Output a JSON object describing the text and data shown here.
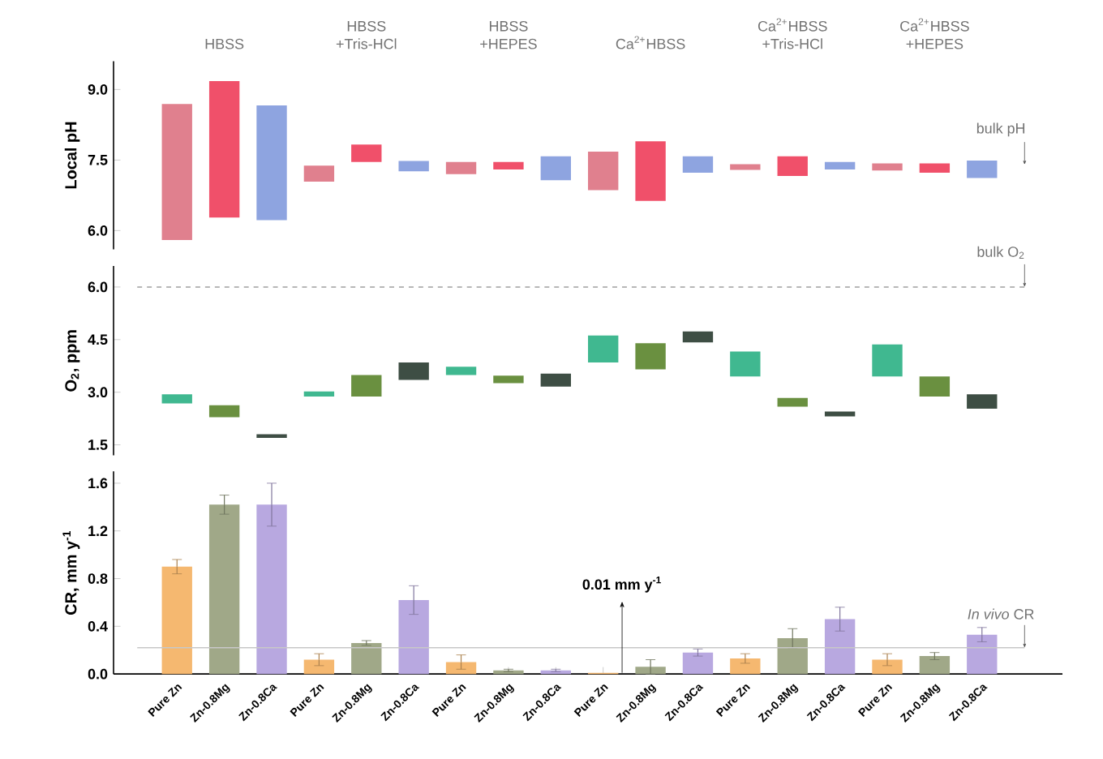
{
  "chart_data": [
    {
      "type": "bar",
      "ylabel": "Local pH",
      "tick_labels": "y",
      "categories": [
        null,
        null,
        null,
        null,
        null,
        null,
        null,
        null,
        null,
        null,
        null,
        null,
        null,
        null,
        null,
        null,
        null,
        null
      ],
      "base": [
        5.8,
        6.28,
        6.22,
        7.04,
        7.46,
        7.26,
        7.2,
        7.3,
        7.07,
        6.86,
        6.63,
        7.23,
        7.29,
        7.16,
        7.3,
        7.28,
        7.23,
        7.12
      ],
      "values": [
        2.89,
        2.9,
        2.44,
        0.34,
        0.37,
        0.22,
        0.26,
        0.16,
        0.51,
        0.82,
        1.27,
        0.35,
        0.12,
        0.42,
        0.16,
        0.15,
        0.2,
        0.37
      ],
      "colors": [
        "#e0808e",
        "#f0506a",
        "#8ea4e0",
        "#e0808e",
        "#f0506a",
        "#8ea4e0",
        "#e0808e",
        "#f0506a",
        "#8ea4e0",
        "#e0808e",
        "#f0506a",
        "#8ea4e0",
        "#e0808e",
        "#f0506a",
        "#8ea4e0",
        "#e0808e",
        "#f0506a",
        "#8ea4e0"
      ],
      "ylim": [
        5.6,
        9.6
      ],
      "yticks": [
        {
          "value": 6.0,
          "label": "6.0"
        },
        {
          "value": 7.5,
          "label": "7.5"
        },
        {
          "value": 9.0,
          "label": "9.0"
        }
      ],
      "annotations": [
        "HBSS",
        "HBSS +Tris-HCl",
        "HBSS +HEPES",
        "Ca$^{2+}$HBSS",
        "Ca$^{2+}$HBSS +Tris-HCl",
        "Ca$^{2+}$HBSS +HEPES",
        {
          "text": "bulk pH",
          "y": 7.4
        }
      ]
    },
    {
      "type": "bar",
      "ylabel": "O$_{2}$, ppm",
      "tick_labels": "y",
      "categories": [
        null,
        null,
        null,
        null,
        null,
        null,
        null,
        null,
        null,
        null,
        null,
        null,
        null,
        null,
        null,
        null,
        null,
        null
      ],
      "base": [
        2.68,
        2.29,
        1.7,
        2.88,
        2.88,
        3.35,
        3.49,
        3.26,
        3.16,
        3.85,
        3.65,
        4.42,
        3.45,
        2.59,
        2.31,
        3.45,
        2.88,
        2.53
      ],
      "values": [
        0.26,
        0.34,
        0.1,
        0.14,
        0.61,
        0.5,
        0.24,
        0.21,
        0.37,
        0.77,
        0.75,
        0.31,
        0.71,
        0.25,
        0.14,
        0.91,
        0.57,
        0.41
      ],
      "colors": [
        "#40b890",
        "#6a9040",
        "#3e4e44",
        "#40b890",
        "#6a9040",
        "#3e4e44",
        "#40b890",
        "#6a9040",
        "#3e4e44",
        "#40b890",
        "#6a9040",
        "#3e4e44",
        "#40b890",
        "#6a9040",
        "#3e4e44",
        "#40b890",
        "#6a9040",
        "#3e4e44"
      ],
      "ylim": [
        1.2,
        6.6
      ],
      "yticks": [
        {
          "value": 1.5,
          "label": "1.5"
        },
        {
          "value": 3.0,
          "label": "3.0"
        },
        {
          "value": 4.5,
          "label": "4.5"
        },
        {
          "value": 6.0,
          "label": "6.0"
        }
      ],
      "ref_lines": [
        {
          "axis": "y",
          "value": 6.0,
          "label": "bulk O$_{2}$",
          "color": "#a0a0a0",
          "line_style": "dashed"
        }
      ]
    },
    {
      "type": "bar",
      "ylabel": "CR, mm y$^{-1}$",
      "categories": [
        "Pure Zn",
        "Zn-0.8Mg",
        "Zn-0.8Ca",
        "Pure Zn",
        "Zn-0.8Mg",
        "Zn-0.8Ca",
        "Pure Zn",
        "Zn-0.8Mg",
        "Zn-0.8Ca",
        "Pure Zn",
        "Zn-0.8Mg",
        "Zn-0.8Ca",
        "Pure Zn",
        "Zn-0.8Mg",
        "Zn-0.8Ca",
        "Pure Zn",
        "Zn-0.8Mg",
        "Zn-0.8Ca"
      ],
      "values": [
        0.9,
        1.42,
        1.42,
        0.12,
        0.26,
        0.62,
        0.1,
        0.03,
        0.03,
        0.01,
        0.06,
        0.18,
        0.13,
        0.3,
        0.46,
        0.12,
        0.15,
        0.33
      ],
      "errors": [
        0.06,
        0.08,
        0.18,
        0.05,
        0.02,
        0.12,
        0.06,
        0.01,
        0.01,
        null,
        0.06,
        0.03,
        0.04,
        0.08,
        0.1,
        0.05,
        0.03,
        0.06
      ],
      "colors": [
        "#f5b870",
        "#a0a888",
        "#b8a8e0",
        "#f5b870",
        "#a0a888",
        "#b8a8e0",
        "#f5b870",
        "#a0a888",
        "#b8a8e0",
        "#f5b870",
        "#a0a888",
        "#b8a8e0",
        "#f5b870",
        "#a0a888",
        "#b8a8e0",
        "#f5b870",
        "#a0a888",
        "#b8a8e0"
      ],
      "ylim": [
        0,
        1.7
      ],
      "yticks": [
        {
          "value": 0.0,
          "label": "0.0"
        },
        {
          "value": 0.4,
          "label": "0.4"
        },
        {
          "value": 0.8,
          "label": "0.8"
        },
        {
          "value": 1.2,
          "label": "1.2"
        },
        {
          "value": 1.6,
          "label": "1.6"
        }
      ],
      "ref_lines": [
        {
          "axis": "y",
          "value": 0.22,
          "label": "*In vivo* CR",
          "color": "#c8c8c8",
          "line_style": "solid"
        }
      ],
      "annotations": [
        {
          "text": "0.01 mm y$^{-1}$",
          "y": 0.01
        }
      ]
    }
  ]
}
